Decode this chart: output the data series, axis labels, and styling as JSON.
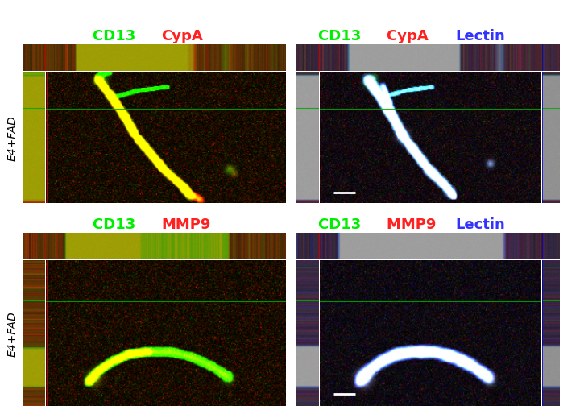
{
  "titles": [
    [
      {
        "text": "CD13 ",
        "color": "#00ee00"
      },
      {
        "text": "CypA",
        "color": "#ff2020"
      }
    ],
    [
      {
        "text": "CD13 ",
        "color": "#00ee00"
      },
      {
        "text": "CypA ",
        "color": "#ff2020"
      },
      {
        "text": "Lectin",
        "color": "#3333ff"
      }
    ],
    [
      {
        "text": "CD13 ",
        "color": "#00ee00"
      },
      {
        "text": "MMP9",
        "color": "#ff2020"
      }
    ],
    [
      {
        "text": "CD13 ",
        "color": "#00ee00"
      },
      {
        "text": "MMP9 ",
        "color": "#ff2020"
      },
      {
        "text": "Lectin",
        "color": "#3333ff"
      }
    ]
  ],
  "ylabel": "E4+FAD",
  "crosshair_red": "#cc0000",
  "crosshair_green": "#00aa00",
  "crosshair_blue": "#0000cc",
  "title_fontsize": 13,
  "ylabel_fontsize": 10,
  "figure_bg": "#ffffff"
}
